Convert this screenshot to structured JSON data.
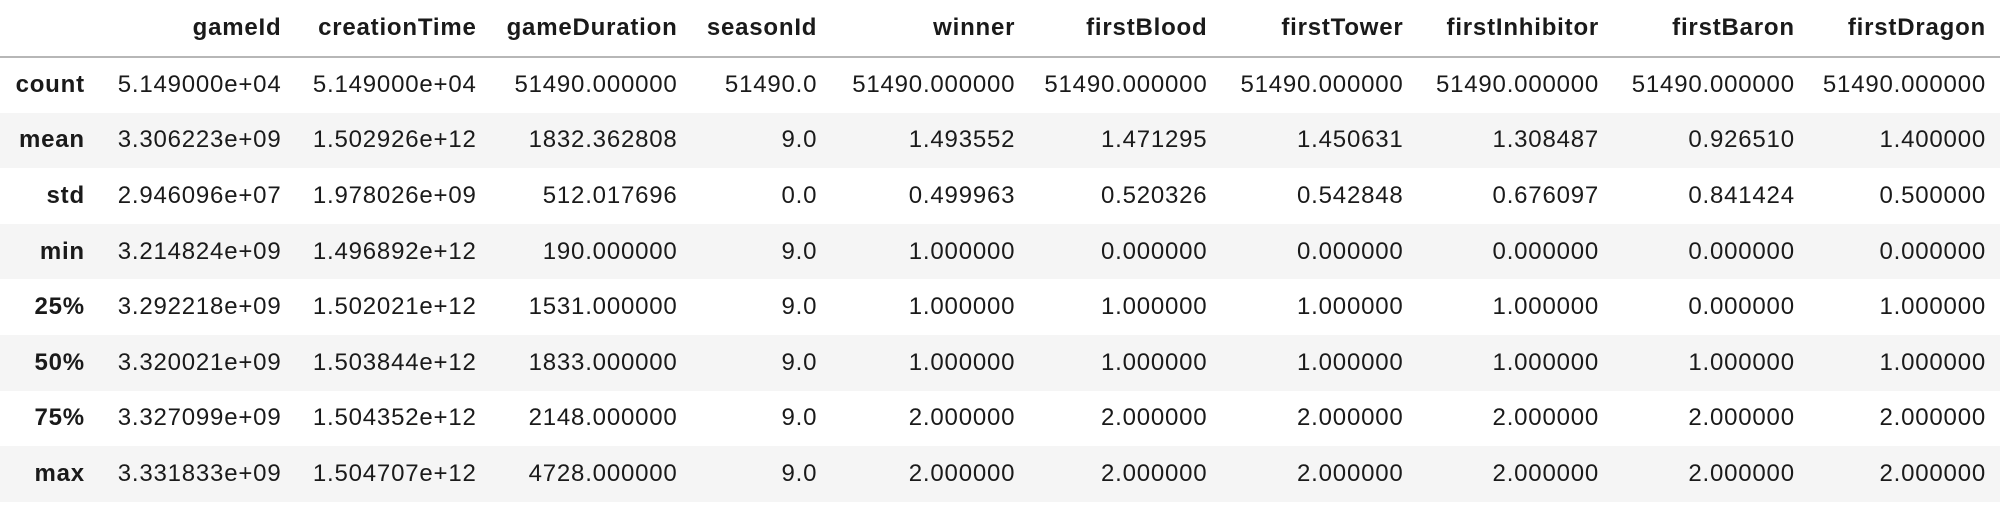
{
  "table": {
    "columns": [
      "",
      "gameId",
      "creationTime",
      "gameDuration",
      "seasonId",
      "winner",
      "firstBlood",
      "firstTower",
      "firstInhibitor",
      "firstBaron",
      "firstDragon"
    ],
    "rows": [
      {
        "label": "count",
        "values": [
          "5.149000e+04",
          "5.149000e+04",
          "51490.000000",
          "51490.0",
          "51490.000000",
          "51490.000000",
          "51490.000000",
          "51490.000000",
          "51490.000000",
          "51490.000000"
        ]
      },
      {
        "label": "mean",
        "values": [
          "3.306223e+09",
          "1.502926e+12",
          "1832.362808",
          "9.0",
          "1.493552",
          "1.471295",
          "1.450631",
          "1.308487",
          "0.926510",
          "1.400000"
        ]
      },
      {
        "label": "std",
        "values": [
          "2.946096e+07",
          "1.978026e+09",
          "512.017696",
          "0.0",
          "0.499963",
          "0.520326",
          "0.542848",
          "0.676097",
          "0.841424",
          "0.500000"
        ]
      },
      {
        "label": "min",
        "values": [
          "3.214824e+09",
          "1.496892e+12",
          "190.000000",
          "9.0",
          "1.000000",
          "0.000000",
          "0.000000",
          "0.000000",
          "0.000000",
          "0.000000"
        ]
      },
      {
        "label": "25%",
        "values": [
          "3.292218e+09",
          "1.502021e+12",
          "1531.000000",
          "9.0",
          "1.000000",
          "1.000000",
          "1.000000",
          "1.000000",
          "0.000000",
          "1.000000"
        ]
      },
      {
        "label": "50%",
        "values": [
          "3.320021e+09",
          "1.503844e+12",
          "1833.000000",
          "9.0",
          "1.000000",
          "1.000000",
          "1.000000",
          "1.000000",
          "1.000000",
          "1.000000"
        ]
      },
      {
        "label": "75%",
        "values": [
          "3.327099e+09",
          "1.504352e+12",
          "2148.000000",
          "9.0",
          "2.000000",
          "2.000000",
          "2.000000",
          "2.000000",
          "2.000000",
          "2.000000"
        ]
      },
      {
        "label": "max",
        "values": [
          "3.331833e+09",
          "1.504707e+12",
          "4728.000000",
          "9.0",
          "2.000000",
          "2.000000",
          "2.000000",
          "2.000000",
          "2.000000",
          "2.000000"
        ]
      }
    ]
  },
  "colors": {
    "background": "#ffffff",
    "stripe": "#f5f5f5",
    "header_border": "#b7b7b7",
    "text": "#1a1a1a"
  }
}
